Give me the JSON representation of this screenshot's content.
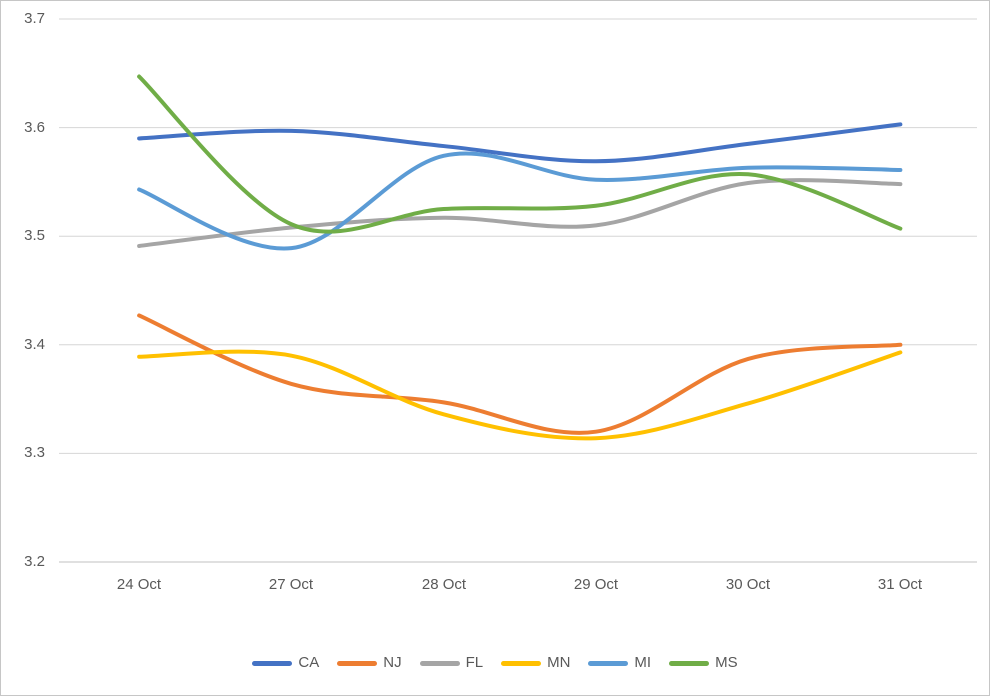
{
  "chart_data": {
    "type": "line",
    "line_style": "smooth",
    "title": "",
    "xlabel": "",
    "ylabel": "",
    "categories": [
      "24 Oct",
      "27 Oct",
      "28 Oct",
      "29 Oct",
      "30 Oct",
      "31 Oct"
    ],
    "ytick_labels": [
      "3.7",
      "3.6",
      "3.5",
      "3.4",
      "3.3",
      "3.2"
    ],
    "ylim": [
      3.2,
      3.7
    ],
    "grid": true,
    "legend_position": "bottom",
    "series": [
      {
        "name": "CA",
        "color": "#4472C4",
        "values": [
          3.59,
          3.597,
          3.583,
          3.569,
          3.585,
          3.603
        ]
      },
      {
        "name": "NJ",
        "color": "#ED7D31",
        "values": [
          3.427,
          3.364,
          3.347,
          3.32,
          3.387,
          3.4
        ]
      },
      {
        "name": "FL",
        "color": "#A5A5A5",
        "values": [
          3.491,
          3.508,
          3.517,
          3.51,
          3.549,
          3.548
        ]
      },
      {
        "name": "MN",
        "color": "#FFC000",
        "values": [
          3.389,
          3.39,
          3.336,
          3.314,
          3.346,
          3.393
        ]
      },
      {
        "name": "MI",
        "color": "#5B9BD5",
        "values": [
          3.543,
          3.489,
          3.574,
          3.552,
          3.563,
          3.561
        ]
      },
      {
        "name": "MS",
        "color": "#70AD47",
        "values": [
          3.647,
          3.511,
          3.525,
          3.528,
          3.557,
          3.507
        ]
      }
    ]
  },
  "colors": {
    "gridline": "#D6D6D6",
    "axis_line": "#C0C0C0",
    "tick_label": "#595959",
    "background": "#FFFFFF",
    "border": "#C6C6C6"
  }
}
